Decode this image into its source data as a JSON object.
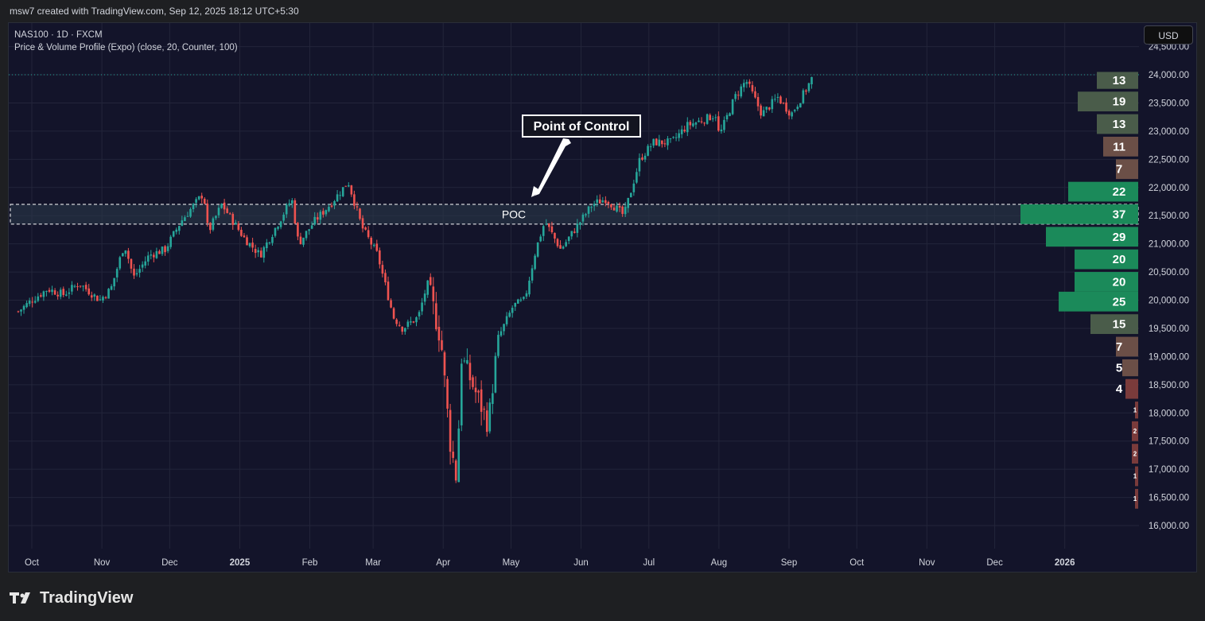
{
  "header": {
    "credit": "msw7 created with TradingView.com, Sep 12, 2025 18:12 UTC+5:30"
  },
  "legend": {
    "symbol": "NAS100 · 1D · FXCM",
    "indicator": "Price & Volume Profile (Expo) (close, 20, Counter, 100)"
  },
  "currency_label": "USD",
  "footer": {
    "brand": "TradingView"
  },
  "colors": {
    "up": "#26a69a",
    "down": "#ef5350",
    "profile_green": "#1b8a5a",
    "profile_olive": "#4a5c4a",
    "profile_brown": "#6b4f47",
    "profile_red": "#7a3b3b",
    "poc_box": "#2b3a4a"
  },
  "annotations": {
    "poc_label": "POC",
    "callout": "Point of Control"
  },
  "chart_data": {
    "type": "candlestick",
    "symbol": "NAS100",
    "timeframe": "1D",
    "x_ticks": [
      "Oct",
      "Nov",
      "Dec",
      "2025",
      "Feb",
      "Mar",
      "Apr",
      "May",
      "Jun",
      "Jul",
      "Aug",
      "Sep",
      "Oct",
      "Nov",
      "Dec",
      "2026"
    ],
    "y_ticks": [
      "24,500.00",
      "24,000.00",
      "23,500.00",
      "23,000.00",
      "22,500.00",
      "22,000.00",
      "21,500.00",
      "21,000.00",
      "20,500.00",
      "20,000.00",
      "19,500.00",
      "19,000.00",
      "18,500.00",
      "18,000.00",
      "17,500.00",
      "17,000.00",
      "16,500.00",
      "16,000.00"
    ],
    "ylim": [
      15800,
      24500
    ],
    "grid": true,
    "last_price_line": 24000,
    "poc": {
      "low": 21350,
      "high": 21700,
      "label": "POC"
    },
    "price_path": [
      {
        "date": "2024-09-25",
        "close": 19800
      },
      {
        "date": "2024-10-01",
        "close": 20000
      },
      {
        "date": "2024-10-08",
        "close": 20200
      },
      {
        "date": "2024-10-15",
        "close": 20100
      },
      {
        "date": "2024-10-22",
        "close": 20300
      },
      {
        "date": "2024-10-31",
        "close": 20000
      },
      {
        "date": "2024-11-05",
        "close": 20200
      },
      {
        "date": "2024-11-11",
        "close": 21000
      },
      {
        "date": "2024-11-15",
        "close": 20400
      },
      {
        "date": "2024-11-22",
        "close": 20800
      },
      {
        "date": "2024-11-29",
        "close": 20900
      },
      {
        "date": "2024-12-06",
        "close": 21400
      },
      {
        "date": "2024-12-16",
        "close": 21900
      },
      {
        "date": "2024-12-18",
        "close": 21200
      },
      {
        "date": "2024-12-24",
        "close": 21700
      },
      {
        "date": "2025-01-03",
        "close": 21100
      },
      {
        "date": "2025-01-10",
        "close": 20800
      },
      {
        "date": "2025-01-17",
        "close": 21300
      },
      {
        "date": "2025-01-24",
        "close": 21800
      },
      {
        "date": "2025-01-27",
        "close": 21000
      },
      {
        "date": "2025-02-03",
        "close": 21400
      },
      {
        "date": "2025-02-10",
        "close": 21700
      },
      {
        "date": "2025-02-18",
        "close": 22100
      },
      {
        "date": "2025-02-24",
        "close": 21300
      },
      {
        "date": "2025-03-03",
        "close": 20800
      },
      {
        "date": "2025-03-10",
        "close": 19700
      },
      {
        "date": "2025-03-14",
        "close": 19500
      },
      {
        "date": "2025-03-21",
        "close": 19700
      },
      {
        "date": "2025-03-25",
        "close": 20300
      },
      {
        "date": "2025-03-31",
        "close": 19300
      },
      {
        "date": "2025-04-04",
        "close": 17500
      },
      {
        "date": "2025-04-07",
        "close": 16800
      },
      {
        "date": "2025-04-09",
        "close": 19000
      },
      {
        "date": "2025-04-14",
        "close": 18500
      },
      {
        "date": "2025-04-21",
        "close": 17800
      },
      {
        "date": "2025-04-25",
        "close": 19300
      },
      {
        "date": "2025-05-02",
        "close": 19900
      },
      {
        "date": "2025-05-07",
        "close": 20000
      },
      {
        "date": "2025-05-12",
        "close": 20900
      },
      {
        "date": "2025-05-16",
        "close": 21400
      },
      {
        "date": "2025-05-23",
        "close": 20900
      },
      {
        "date": "2025-05-30",
        "close": 21300
      },
      {
        "date": "2025-06-06",
        "close": 21700
      },
      {
        "date": "2025-06-12",
        "close": 21800
      },
      {
        "date": "2025-06-20",
        "close": 21500
      },
      {
        "date": "2025-06-27",
        "close": 22500
      },
      {
        "date": "2025-07-03",
        "close": 22800
      },
      {
        "date": "2025-07-11",
        "close": 22800
      },
      {
        "date": "2025-07-18",
        "close": 23100
      },
      {
        "date": "2025-07-25",
        "close": 23200
      },
      {
        "date": "2025-07-31",
        "close": 23300
      },
      {
        "date": "2025-08-01",
        "close": 22900
      },
      {
        "date": "2025-08-08",
        "close": 23600
      },
      {
        "date": "2025-08-13",
        "close": 23900
      },
      {
        "date": "2025-08-20",
        "close": 23300
      },
      {
        "date": "2025-08-27",
        "close": 23600
      },
      {
        "date": "2025-09-02",
        "close": 23300
      },
      {
        "date": "2025-09-08",
        "close": 23700
      },
      {
        "date": "2025-09-12",
        "close": 24000
      }
    ],
    "volume_profile": [
      {
        "price_low": 23750,
        "price_high": 24050,
        "count": 13,
        "tone": "olive"
      },
      {
        "price_low": 23350,
        "price_high": 23700,
        "count": 19,
        "tone": "olive"
      },
      {
        "price_low": 22950,
        "price_high": 23300,
        "count": 13,
        "tone": "olive"
      },
      {
        "price_low": 22550,
        "price_high": 22900,
        "count": 11,
        "tone": "brown"
      },
      {
        "price_low": 22150,
        "price_high": 22500,
        "count": 7,
        "tone": "brown"
      },
      {
        "price_low": 21750,
        "price_high": 22100,
        "count": 22,
        "tone": "green"
      },
      {
        "price_low": 21350,
        "price_high": 21700,
        "count": 37,
        "tone": "green"
      },
      {
        "price_low": 20950,
        "price_high": 21300,
        "count": 29,
        "tone": "green"
      },
      {
        "price_low": 20550,
        "price_high": 20900,
        "count": 20,
        "tone": "green"
      },
      {
        "price_low": 20150,
        "price_high": 20500,
        "count": 20,
        "tone": "green"
      },
      {
        "price_low": 19800,
        "price_high": 20150,
        "count": 25,
        "tone": "green"
      },
      {
        "price_low": 19400,
        "price_high": 19750,
        "count": 15,
        "tone": "olive"
      },
      {
        "price_low": 19000,
        "price_high": 19350,
        "count": 7,
        "tone": "brown"
      },
      {
        "price_low": 18650,
        "price_high": 18950,
        "count": 5,
        "tone": "brown"
      },
      {
        "price_low": 18250,
        "price_high": 18600,
        "count": 4,
        "tone": "red"
      },
      {
        "price_low": 17900,
        "price_high": 18200,
        "count": 1,
        "tone": "red"
      },
      {
        "price_low": 17500,
        "price_high": 17850,
        "count": 2,
        "tone": "red"
      },
      {
        "price_low": 17100,
        "price_high": 17450,
        "count": 2,
        "tone": "red"
      },
      {
        "price_low": 16700,
        "price_high": 17050,
        "count": 1,
        "tone": "red"
      },
      {
        "price_low": 16300,
        "price_high": 16650,
        "count": 1,
        "tone": "red"
      }
    ]
  }
}
